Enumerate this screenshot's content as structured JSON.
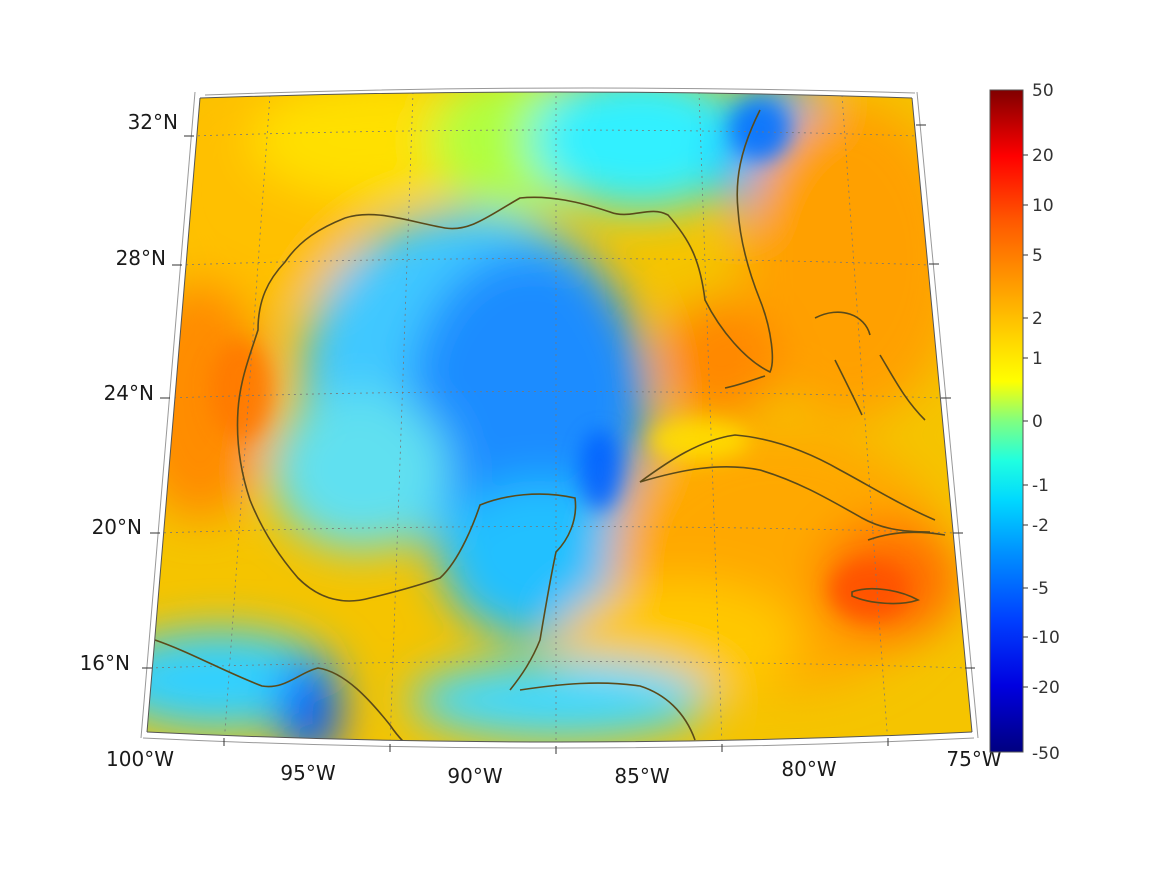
{
  "map": {
    "projection": "lambert-conic",
    "lon_range": [
      -100,
      -75
    ],
    "lat_range": [
      14,
      33
    ],
    "grid": true,
    "lat_ticks": [
      "32°N",
      "28°N",
      "24°N",
      "20°N",
      "16°N"
    ],
    "lon_ticks": [
      "100°W",
      "95°W",
      "90°W",
      "85°W",
      "80°W",
      "75°W"
    ],
    "coastline_color": "#5a4a1a"
  },
  "colorbar": {
    "orientation": "vertical",
    "placement": "right",
    "colormap": "jet",
    "scale": "symmetric-log",
    "range": [
      -50,
      50
    ],
    "tick_labels": [
      "50",
      "20",
      "10",
      "5",
      "2",
      "1",
      "0",
      "-1",
      "-2",
      "-5",
      "-10",
      "-20",
      "-50"
    ]
  }
}
